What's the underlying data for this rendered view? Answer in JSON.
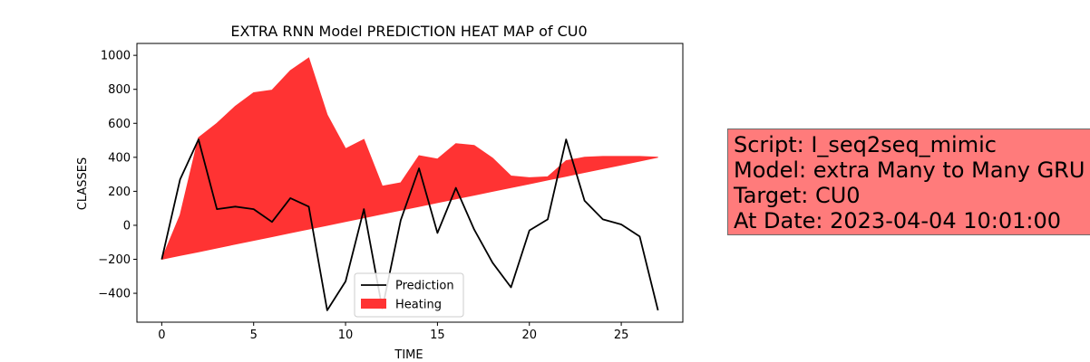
{
  "chart_data": {
    "type": "area",
    "title": "EXTRA RNN Model PREDICTION HEAT MAP of CU0",
    "xlabel": "TIME",
    "ylabel": "CLASSES",
    "xlim": [
      -1.35,
      28.35
    ],
    "ylim": [
      -570,
      1070
    ],
    "xticks": [
      0,
      5,
      10,
      15,
      20,
      25
    ],
    "yticks": [
      -400,
      -200,
      0,
      200,
      400,
      600,
      800,
      1000
    ],
    "legend_position": "lower center",
    "colors": {
      "prediction": "#000000",
      "heating": "#ff3333"
    },
    "x": [
      0,
      1,
      2,
      3,
      4,
      5,
      6,
      7,
      8,
      9,
      10,
      11,
      12,
      13,
      14,
      15,
      16,
      17,
      18,
      19,
      20,
      21,
      22,
      23,
      24,
      25,
      26,
      27
    ],
    "series": [
      {
        "name": "Prediction",
        "kind": "line",
        "values": [
          -200,
          270,
          505,
          95,
          110,
          95,
          20,
          160,
          110,
          -500,
          -330,
          95,
          -490,
          30,
          335,
          -45,
          220,
          -25,
          -220,
          -365,
          -30,
          35,
          505,
          145,
          35,
          5,
          -65,
          -500
        ]
      },
      {
        "name": "Heating",
        "kind": "fill_between",
        "upper": [
          -200,
          60,
          515,
          600,
          700,
          780,
          795,
          910,
          985,
          650,
          450,
          505,
          230,
          250,
          410,
          390,
          480,
          470,
          395,
          290,
          280,
          285,
          380,
          400,
          405,
          405,
          405,
          400
        ],
        "lower": [
          -200,
          -177.8,
          -155.6,
          -133.3,
          -111.1,
          -88.9,
          -66.7,
          -44.4,
          -22.2,
          0,
          22.2,
          44.4,
          66.7,
          88.9,
          111.1,
          133.3,
          155.6,
          177.8,
          200,
          222.2,
          244.4,
          266.7,
          288.9,
          311.1,
          333.3,
          355.6,
          377.8,
          400
        ]
      }
    ]
  },
  "info_box": {
    "line1": "Script: I_seq2seq_mimic",
    "line2": "Model: extra Many to Many GRU",
    "line3": "Target: CU0",
    "line4": "At Date: 2023-04-04 10:01:00"
  }
}
